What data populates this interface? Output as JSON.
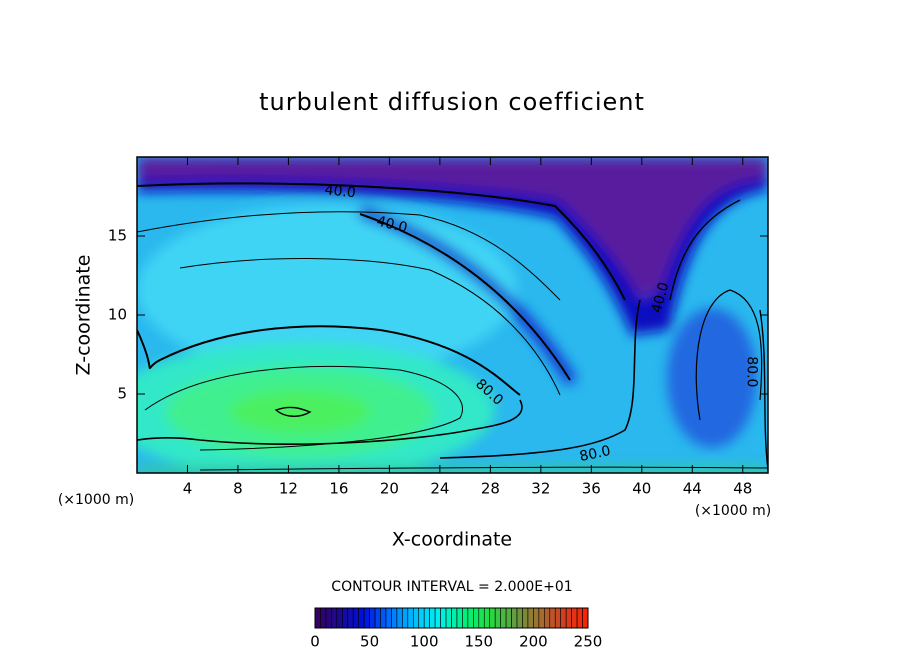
{
  "chart_data": {
    "type": "contour",
    "title": "turbulent diffusion coefficient",
    "x_label": "X-coordinate",
    "y_label": "Z-coordinate",
    "x_unit": "(×1000 m)",
    "y_unit": "(×1000 m)",
    "xlim": [
      0,
      50
    ],
    "ylim": [
      0,
      20
    ],
    "xticks": [
      4,
      8,
      12,
      16,
      20,
      24,
      28,
      32,
      36,
      40,
      44,
      48
    ],
    "yticks": [
      5,
      10,
      15
    ],
    "contour_interval_text": "CONTOUR INTERVAL = 2.000E+01",
    "contour_labels": [
      {
        "label": "40.0",
        "value": 40,
        "x": 16.1,
        "y": 17.8
      },
      {
        "label": "40.0",
        "value": 40,
        "x": 20.2,
        "y": 15.7
      },
      {
        "label": "40.0",
        "value": 40,
        "x": 41.5,
        "y": 11.1
      },
      {
        "label": "80.0",
        "value": 80,
        "x": 27.9,
        "y": 5.1
      },
      {
        "label": "80.0",
        "value": 80,
        "x": 36.3,
        "y": 1.2
      },
      {
        "label": "80.0",
        "value": 80,
        "x": 48.7,
        "y": 6.4
      }
    ],
    "colorbar": {
      "clim": [
        0,
        250
      ],
      "ticks": [
        0,
        50,
        100,
        150,
        200,
        250
      ],
      "colormap": [
        "#3a0060",
        "#1a0a90",
        "#0010e0",
        "#0070ff",
        "#00c0ff",
        "#00f0f0",
        "#00f080",
        "#20e040",
        "#60a040",
        "#a07030",
        "#d04020",
        "#ff2000"
      ]
    }
  }
}
